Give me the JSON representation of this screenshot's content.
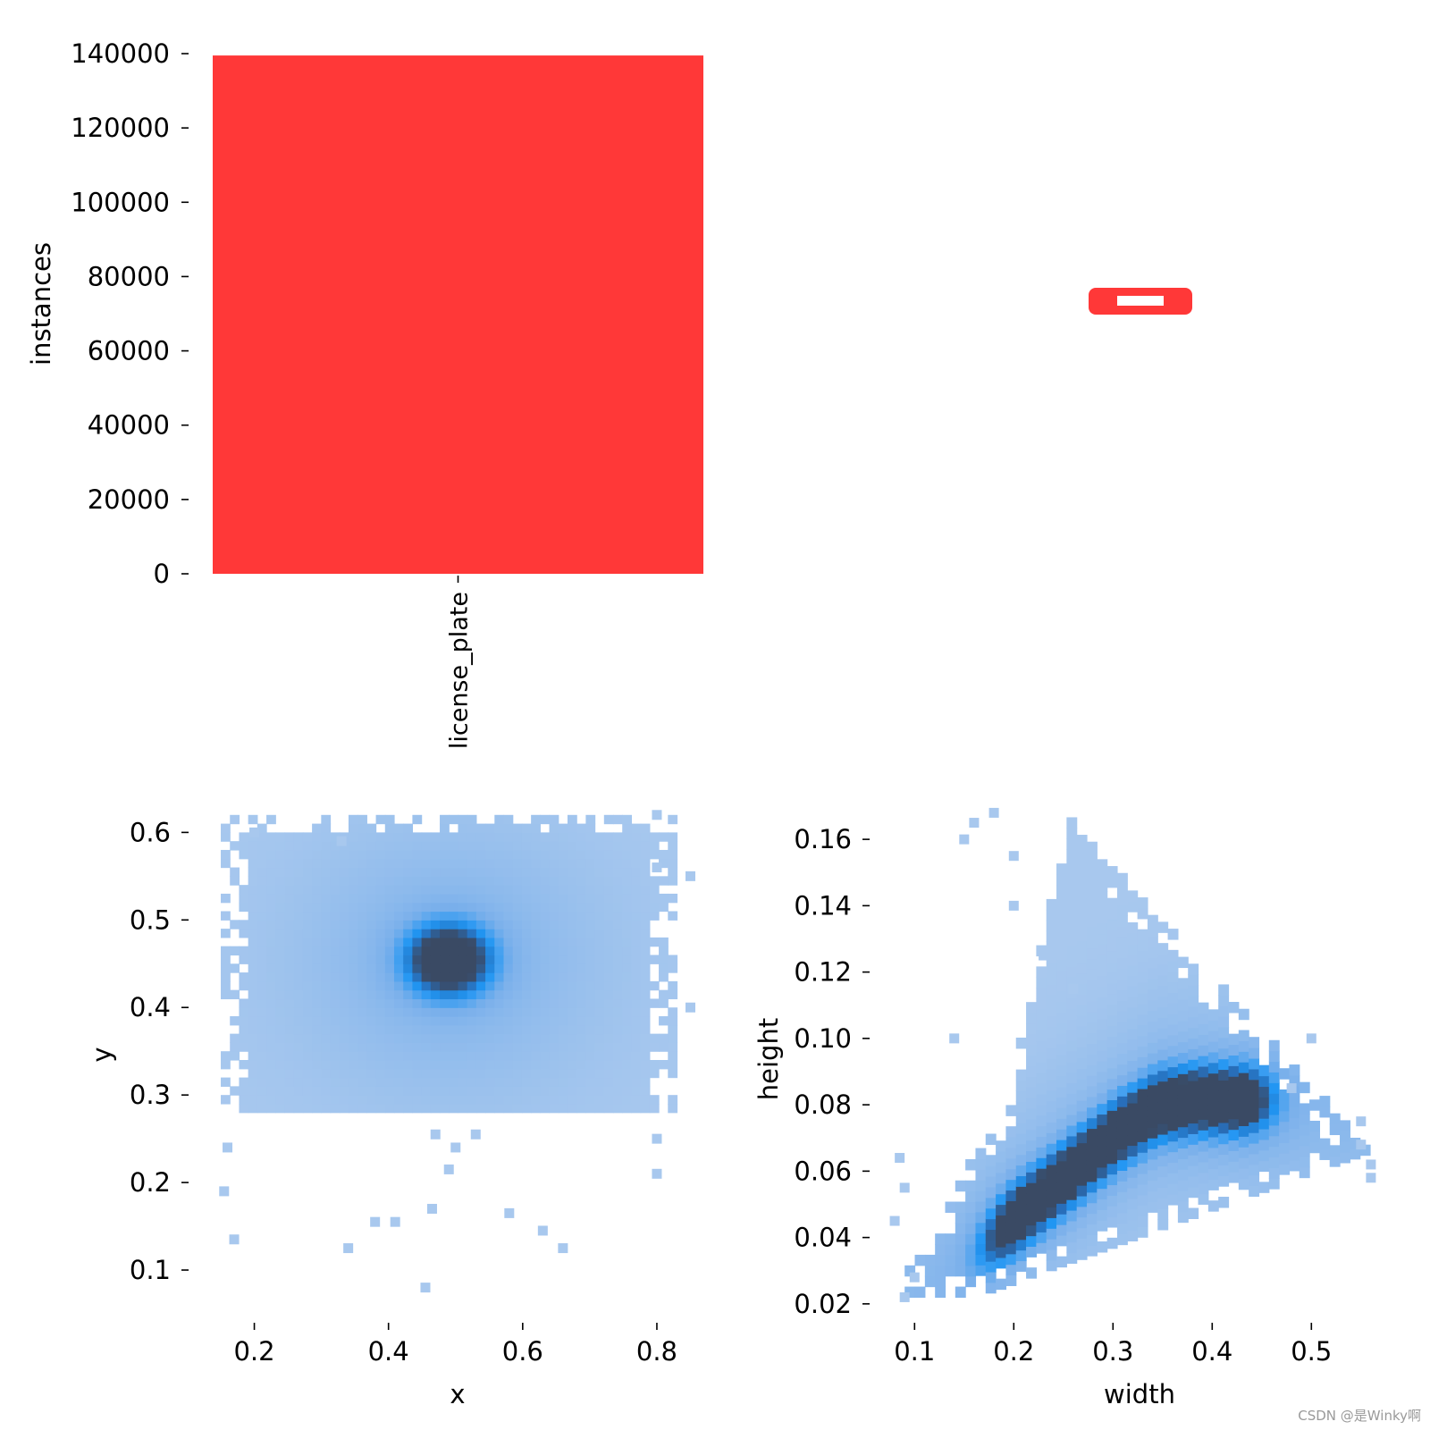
{
  "watermark": "CSDN @是Winky啊",
  "colors": {
    "bar": "#ff3838",
    "hist_light": "#a8c8ee",
    "hist_mid": "#2196f3",
    "hist_dark": "#3a4a64",
    "plate_inner": "#ffffff"
  },
  "chart_data": [
    {
      "type": "bar",
      "panel": "top-left",
      "categories": [
        "license_plate"
      ],
      "values": [
        139500
      ],
      "title": "",
      "xlabel": "",
      "ylabel": "instances",
      "ylim": [
        0,
        140000
      ],
      "yticks": [
        0,
        20000,
        40000,
        60000,
        80000,
        100000,
        120000,
        140000
      ],
      "ytick_labels": [
        "0",
        "20000",
        "40000",
        "60000",
        "80000",
        "100000",
        "120000",
        "140000"
      ],
      "grid": false
    },
    {
      "type": "box-outlines",
      "panel": "top-right",
      "note_shape": "license plate box silhouettes",
      "grid": false
    },
    {
      "type": "heatmap",
      "panel": "bottom-left",
      "xlabel": "x",
      "ylabel": "y",
      "xlim": [
        0.13,
        0.86
      ],
      "ylim": [
        0.05,
        0.63
      ],
      "xticks": [
        0.2,
        0.4,
        0.6,
        0.8
      ],
      "xtick_labels": [
        "0.2",
        "0.4",
        "0.6",
        "0.8"
      ],
      "yticks": [
        0.1,
        0.2,
        0.3,
        0.4,
        0.5,
        0.6
      ],
      "ytick_labels": [
        "0.1",
        "0.2",
        "0.3",
        "0.4",
        "0.5",
        "0.6"
      ],
      "bins": 50,
      "density": {
        "region": {
          "x": [
            0.15,
            0.83
          ],
          "y": [
            0.28,
            0.62
          ]
        },
        "peak": {
          "x": 0.49,
          "y": 0.455
        }
      },
      "outliers": [
        [
          0.16,
          0.24
        ],
        [
          0.155,
          0.19
        ],
        [
          0.17,
          0.135
        ],
        [
          0.34,
          0.125
        ],
        [
          0.38,
          0.155
        ],
        [
          0.41,
          0.155
        ],
        [
          0.455,
          0.08
        ],
        [
          0.47,
          0.255
        ],
        [
          0.5,
          0.24
        ],
        [
          0.49,
          0.215
        ],
        [
          0.465,
          0.17
        ],
        [
          0.53,
          0.255
        ],
        [
          0.58,
          0.165
        ],
        [
          0.63,
          0.145
        ],
        [
          0.66,
          0.125
        ],
        [
          0.8,
          0.25
        ],
        [
          0.8,
          0.21
        ],
        [
          0.85,
          0.55
        ],
        [
          0.85,
          0.4
        ],
        [
          0.8,
          0.56
        ],
        [
          0.2,
          0.6
        ],
        [
          0.8,
          0.62
        ],
        [
          0.33,
          0.59
        ]
      ],
      "grid": false
    },
    {
      "type": "heatmap",
      "panel": "bottom-right",
      "xlabel": "width",
      "ylabel": "height",
      "xlim": [
        0.07,
        0.57
      ],
      "ylim": [
        0.017,
        0.17
      ],
      "xticks": [
        0.1,
        0.2,
        0.3,
        0.4,
        0.5
      ],
      "xtick_labels": [
        "0.1",
        "0.2",
        "0.3",
        "0.4",
        "0.5"
      ],
      "yticks": [
        0.02,
        0.04,
        0.06,
        0.08,
        0.1,
        0.12,
        0.14,
        0.16
      ],
      "ytick_labels": [
        "0.02",
        "0.04",
        "0.06",
        "0.08",
        "0.10",
        "0.12",
        "0.14",
        "0.16"
      ],
      "bins": 50,
      "density": {
        "ridge": [
          [
            0.22,
            0.05
          ],
          [
            0.26,
            0.06
          ],
          [
            0.3,
            0.07
          ],
          [
            0.34,
            0.078
          ],
          [
            0.38,
            0.08
          ]
        ]
      },
      "outliers": [
        [
          0.08,
          0.045
        ],
        [
          0.09,
          0.022
        ],
        [
          0.1,
          0.028
        ],
        [
          0.085,
          0.064
        ],
        [
          0.09,
          0.055
        ],
        [
          0.55,
          0.075
        ],
        [
          0.56,
          0.062
        ],
        [
          0.55,
          0.068
        ],
        [
          0.56,
          0.058
        ],
        [
          0.5,
          0.1
        ],
        [
          0.48,
          0.085
        ],
        [
          0.14,
          0.1
        ],
        [
          0.15,
          0.16
        ],
        [
          0.16,
          0.165
        ],
        [
          0.18,
          0.168
        ],
        [
          0.2,
          0.155
        ],
        [
          0.2,
          0.14
        ],
        [
          0.23,
          0.125
        ],
        [
          0.26,
          0.115
        ]
      ],
      "grid": false
    }
  ]
}
